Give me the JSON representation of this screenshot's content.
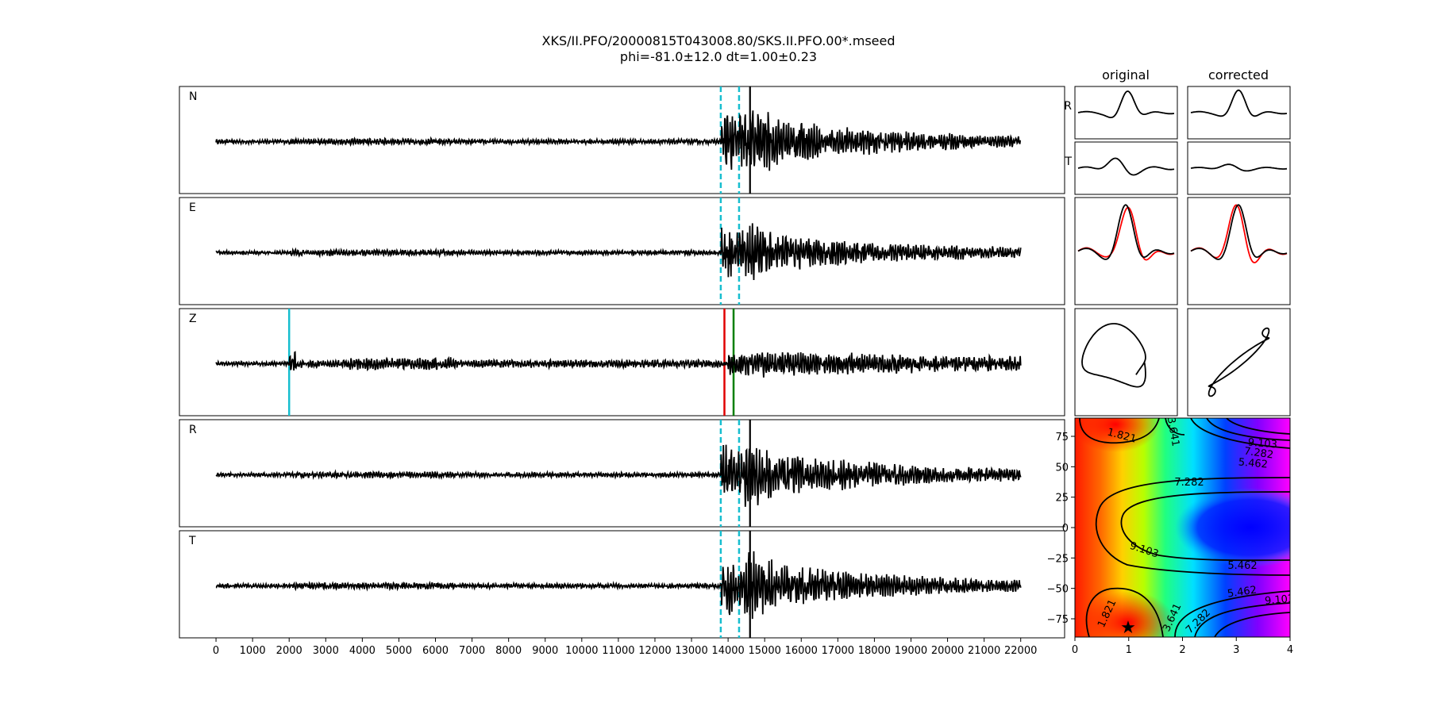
{
  "figure": {
    "title_line1": "XKS/II.PFO/20000815T043008.80/SKS.II.PFO.00*.mseed",
    "title_line2": "phi=-81.0±12.0 dt=1.00±0.23",
    "col_original": "original",
    "col_corrected": "corrected"
  },
  "chart_data": [
    {
      "type": "line",
      "description_role": "seismograms",
      "traces": [
        "N",
        "E",
        "Z",
        "R",
        "T"
      ],
      "x_ticks": [
        0,
        1000,
        2000,
        3000,
        4000,
        5000,
        6000,
        7000,
        8000,
        9000,
        10000,
        11000,
        12000,
        13000,
        14000,
        15000,
        16000,
        17000,
        18000,
        19000,
        20000,
        21000,
        22000
      ],
      "xlim": [
        -1000,
        23200
      ],
      "signal_range": [
        0,
        22000
      ],
      "window_lines": [
        13800,
        14300
      ],
      "z_markers": [
        {
          "x": 2000,
          "color": "#17becf"
        },
        {
          "x": 13900,
          "color": "#e00000"
        },
        {
          "x": 14150,
          "color": "#007f00"
        }
      ],
      "main_arrival": 14600,
      "colors": {
        "trace": "#000000",
        "window": "#17becf"
      }
    },
    {
      "type": "line",
      "description_role": "particle-window-panels",
      "row_labels": [
        "R",
        "T"
      ],
      "colors": {
        "black": "#000000",
        "red": "#ff0000"
      }
    },
    {
      "type": "heatmap",
      "description_role": "splitting-energy-grid",
      "x_ticks": [
        "0",
        "1",
        "2",
        "3",
        "4"
      ],
      "y_ticks": [
        "75",
        "50",
        "25",
        "0",
        "−25",
        "−50",
        "−75"
      ],
      "xlim": [
        0,
        4
      ],
      "ylim": [
        -90,
        90
      ],
      "contour_levels": [
        "1.821",
        "3.641",
        "5.462",
        "7.282",
        "9.103"
      ],
      "best": {
        "dt": 1.0,
        "phi": -81.0
      }
    }
  ]
}
